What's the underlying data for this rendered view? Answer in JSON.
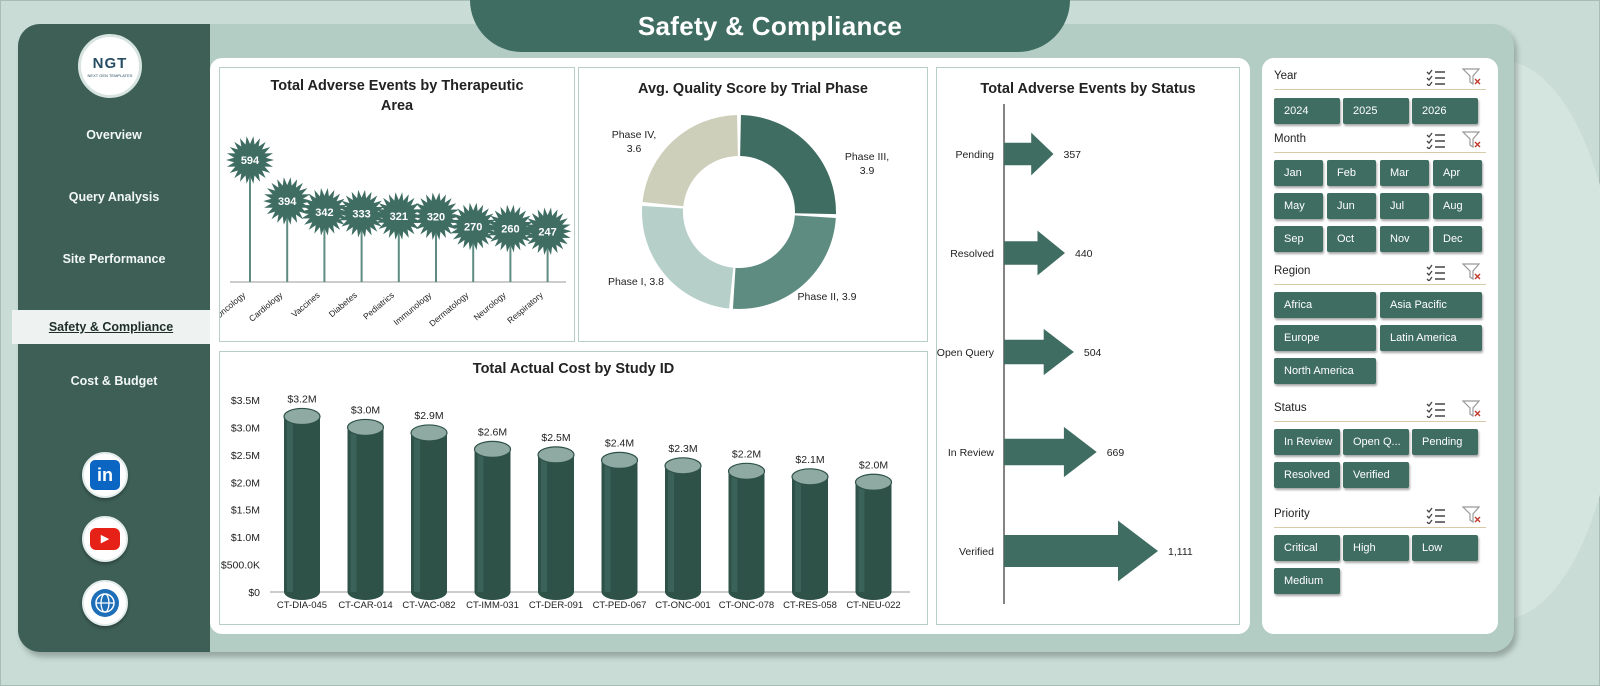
{
  "title": "Safety & Compliance",
  "logo": {
    "text": "NGT",
    "subtext": "NEXT GEN TEMPLATES"
  },
  "nav": [
    {
      "label": "Overview",
      "active": false
    },
    {
      "label": "Query Analysis",
      "active": false
    },
    {
      "label": "Site Performance",
      "active": false
    },
    {
      "label": "Safety & Compliance",
      "active": true
    },
    {
      "label": "Cost & Budget",
      "active": false
    }
  ],
  "social": [
    {
      "name": "linkedin-icon",
      "glyph": "in",
      "color": "#0a66c2"
    },
    {
      "name": "youtube-icon",
      "glyph": "▶",
      "color": "#e62117"
    },
    {
      "name": "globe-icon",
      "glyph": "🌐",
      "color": "#1e6fb8"
    }
  ],
  "colors": {
    "dark": "#3f6d62",
    "mid": "#5e8c80",
    "light": "#b3cdc5",
    "beige": "#cdcfba"
  },
  "chart_data": [
    {
      "type": "bar",
      "title": "Total Adverse Events by Therapeutic Area",
      "categories": [
        "Oncology",
        "Cardiology",
        "Vaccines",
        "Diabetes",
        "Pediatrics",
        "Immunology",
        "Dermatology",
        "Neurology",
        "Respiratory"
      ],
      "values": [
        594,
        394,
        342,
        333,
        321,
        320,
        270,
        260,
        247
      ],
      "style": "lollipop-starburst"
    },
    {
      "type": "pie",
      "title": "Avg. Quality Score by Trial Phase",
      "labels": [
        "Phase III",
        "Phase II",
        "Phase I",
        "Phase IV"
      ],
      "values": [
        3.9,
        3.9,
        3.8,
        3.6
      ],
      "display_labels": [
        "Phase III,\n3.9",
        "Phase II, 3.9",
        "Phase I, 3.8",
        "Phase IV,\n3.6"
      ],
      "style": "donut"
    },
    {
      "type": "bar",
      "title": "Total Adverse Events by Status",
      "categories": [
        "Pending",
        "Resolved",
        "Open Query",
        "In Review",
        "Verified"
      ],
      "values": [
        357,
        440,
        504,
        669,
        1111
      ],
      "value_labels": [
        "357",
        "440",
        "504",
        "669",
        "1,111"
      ],
      "orientation": "horizontal",
      "style": "arrow"
    },
    {
      "type": "bar",
      "title": "Total Actual Cost by Study ID",
      "categories": [
        "CT-DIA-045",
        "CT-CAR-014",
        "CT-VAC-082",
        "CT-IMM-031",
        "CT-DER-091",
        "CT-PED-067",
        "CT-ONC-001",
        "CT-ONC-078",
        "CT-RES-058",
        "CT-NEU-022"
      ],
      "values": [
        3.2,
        3.0,
        2.9,
        2.6,
        2.5,
        2.4,
        2.3,
        2.2,
        2.1,
        2.0
      ],
      "value_labels": [
        "$3.2M",
        "$3.0M",
        "$2.9M",
        "$2.6M",
        "$2.5M",
        "$2.4M",
        "$2.3M",
        "$2.2M",
        "$2.1M",
        "$2.0M"
      ],
      "yticks": [
        "$0",
        "$500.0K",
        "$1.0M",
        "$1.5M",
        "$2.0M",
        "$2.5M",
        "$3.0M",
        "$3.5M"
      ],
      "ylim": [
        0,
        3.5
      ],
      "style": "cylinder"
    }
  ],
  "slicers": [
    {
      "label": "Year",
      "items": [
        "2024",
        "2025",
        "2026"
      ]
    },
    {
      "label": "Month",
      "items": [
        "Jan",
        "Feb",
        "Mar",
        "Apr",
        "May",
        "Jun",
        "Jul",
        "Aug",
        "Sep",
        "Oct",
        "Nov",
        "Dec"
      ]
    },
    {
      "label": "Region",
      "items": [
        "Africa",
        "Asia Pacific",
        "Europe",
        "Latin America",
        "North America"
      ]
    },
    {
      "label": "Status",
      "items": [
        "In Review",
        "Open Q...",
        "Pending",
        "Resolved",
        "Verified"
      ]
    },
    {
      "label": "Priority",
      "items": [
        "Critical",
        "High",
        "Low",
        "Medium"
      ]
    }
  ]
}
